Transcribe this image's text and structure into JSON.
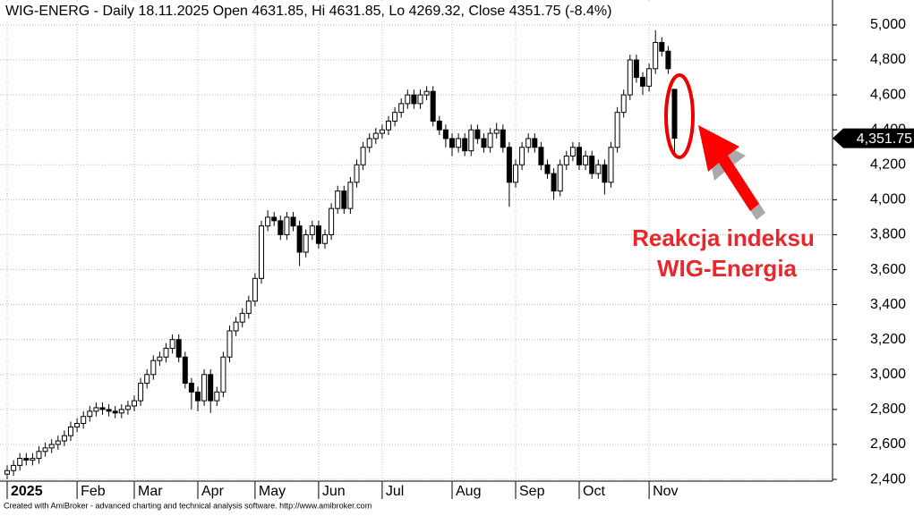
{
  "chart_data": {
    "type": "candlestick",
    "title": "WIG-ENERG - Daily 18.11.2025 Open 4631.85, Hi 4631.85, Lo 4269.32, Close 4351.75 (-8.4%)",
    "last_price_label": "4,351.75",
    "annotation": [
      "Reakcja indeksu",
      "WIG-Energia"
    ],
    "footer": "Created with AmiBroker - advanced charting and technical analysis software. http://www.amibroker.com",
    "categories": [
      "2025",
      null,
      null,
      null,
      null,
      null,
      null,
      null,
      null,
      null,
      null,
      "Feb",
      null,
      null,
      null,
      null,
      null,
      null,
      null,
      null,
      "Mar",
      null,
      null,
      null,
      null,
      null,
      null,
      null,
      null,
      null,
      "Apr",
      null,
      null,
      null,
      null,
      null,
      null,
      null,
      null,
      "May",
      null,
      null,
      null,
      null,
      null,
      null,
      null,
      null,
      null,
      "Jun",
      null,
      null,
      null,
      null,
      null,
      null,
      null,
      null,
      null,
      "Jul",
      null,
      null,
      null,
      null,
      null,
      null,
      null,
      null,
      null,
      null,
      "Aug",
      null,
      null,
      null,
      null,
      null,
      null,
      null,
      null,
      null,
      "Sep",
      null,
      null,
      null,
      null,
      null,
      null,
      null,
      null,
      null,
      "Oct",
      null,
      null,
      null,
      null,
      null,
      null,
      null,
      null,
      null,
      null,
      "Nov",
      null,
      null,
      null,
      null
    ],
    "open": [
      2430,
      2450,
      2480,
      2520,
      2510,
      2520,
      2560,
      2580,
      2600,
      2620,
      2650,
      2700,
      2720,
      2760,
      2790,
      2810,
      2800,
      2790,
      2780,
      2800,
      2820,
      2850,
      2950,
      3000,
      3080,
      3100,
      3150,
      3200,
      3100,
      2950,
      2900,
      2850,
      3000,
      2850,
      2900,
      3100,
      3250,
      3300,
      3350,
      3420,
      3550,
      3850,
      3900,
      3880,
      3800,
      3900,
      3850,
      3700,
      3800,
      3850,
      3750,
      3800,
      3950,
      4050,
      3950,
      4100,
      4200,
      4300,
      4350,
      4380,
      4400,
      4450,
      4500,
      4550,
      4600,
      4550,
      4600,
      4620,
      4450,
      4400,
      4350,
      4300,
      4350,
      4280,
      4400,
      4350,
      4300,
      4380,
      4400,
      4300,
      4100,
      4200,
      4300,
      4350,
      4300,
      4200,
      4150,
      4050,
      4200,
      4250,
      4300,
      4200,
      4250,
      4150,
      4200,
      4100,
      4300,
      4500,
      4600,
      4800,
      4700,
      4650,
      4750,
      4900,
      4850,
      4631.85
    ],
    "high": [
      2480,
      2510,
      2550,
      2550,
      2550,
      2590,
      2610,
      2630,
      2650,
      2680,
      2730,
      2750,
      2790,
      2820,
      2840,
      2840,
      2830,
      2820,
      2830,
      2850,
      2880,
      2980,
      3030,
      3110,
      3130,
      3180,
      3230,
      3230,
      3130,
      2980,
      2930,
      3030,
      3030,
      2930,
      3130,
      3280,
      3330,
      3380,
      3450,
      3580,
      3880,
      3940,
      3930,
      3910,
      3930,
      3930,
      3880,
      3830,
      3880,
      3880,
      3830,
      3980,
      4080,
      4080,
      4130,
      4230,
      4330,
      4380,
      4410,
      4430,
      4480,
      4530,
      4580,
      4630,
      4630,
      4630,
      4650,
      4650,
      4480,
      4430,
      4380,
      4380,
      4380,
      4430,
      4430,
      4380,
      4410,
      4440,
      4430,
      4330,
      4230,
      4330,
      4380,
      4380,
      4330,
      4230,
      4180,
      4230,
      4280,
      4330,
      4330,
      4280,
      4280,
      4230,
      4230,
      4330,
      4530,
      4630,
      4830,
      4830,
      4730,
      4780,
      4970,
      4930,
      4880,
      4631.85
    ],
    "low": [
      2400,
      2420,
      2450,
      2480,
      2480,
      2490,
      2530,
      2550,
      2570,
      2590,
      2620,
      2670,
      2690,
      2730,
      2760,
      2770,
      2760,
      2750,
      2750,
      2770,
      2790,
      2820,
      2920,
      2970,
      3050,
      3070,
      3120,
      3070,
      2920,
      2800,
      2790,
      2820,
      2780,
      2820,
      2870,
      3070,
      3220,
      3270,
      3320,
      3390,
      3520,
      3820,
      3850,
      3770,
      3770,
      3820,
      3620,
      3670,
      3770,
      3720,
      3720,
      3770,
      3920,
      3920,
      3920,
      4070,
      4170,
      4270,
      4320,
      4350,
      4370,
      4420,
      4470,
      4520,
      4520,
      4520,
      4570,
      4420,
      4370,
      4300,
      4250,
      4270,
      4250,
      4250,
      4320,
      4270,
      4270,
      4350,
      4270,
      3960,
      4070,
      4170,
      4270,
      4270,
      4170,
      4120,
      4000,
      4020,
      4170,
      4220,
      4170,
      4170,
      4120,
      4120,
      4030,
      4070,
      4270,
      4470,
      4570,
      4670,
      4600,
      4620,
      4720,
      4820,
      4720,
      4269.32
    ],
    "close": [
      2450,
      2480,
      2520,
      2510,
      2520,
      2560,
      2580,
      2600,
      2620,
      2650,
      2700,
      2720,
      2760,
      2790,
      2810,
      2800,
      2790,
      2780,
      2800,
      2820,
      2850,
      2950,
      3000,
      3080,
      3100,
      3150,
      3200,
      3100,
      2950,
      2900,
      2850,
      3000,
      2850,
      2900,
      3100,
      3250,
      3300,
      3350,
      3420,
      3550,
      3850,
      3900,
      3880,
      3800,
      3900,
      3850,
      3700,
      3800,
      3850,
      3750,
      3800,
      3950,
      4050,
      3950,
      4100,
      4200,
      4300,
      4350,
      4380,
      4400,
      4450,
      4500,
      4550,
      4600,
      4550,
      4600,
      4620,
      4450,
      4400,
      4350,
      4300,
      4350,
      4280,
      4400,
      4350,
      4300,
      4380,
      4400,
      4300,
      4100,
      4200,
      4300,
      4350,
      4300,
      4200,
      4150,
      4050,
      4200,
      4250,
      4300,
      4200,
      4250,
      4150,
      4200,
      4100,
      4300,
      4500,
      4600,
      4800,
      4700,
      4650,
      4750,
      4900,
      4850,
      4750,
      4351.75
    ],
    "ylim": [
      2390,
      5143
    ],
    "yticks": [
      {
        "value": 2400,
        "label": "2,400"
      },
      {
        "value": 2600,
        "label": "2,600"
      },
      {
        "value": 2800,
        "label": "2,800"
      },
      {
        "value": 3000,
        "label": "3,000"
      },
      {
        "value": 3200,
        "label": "3,200"
      },
      {
        "value": 3400,
        "label": "3,400"
      },
      {
        "value": 3600,
        "label": "3,600"
      },
      {
        "value": 3800,
        "label": "3,800"
      },
      {
        "value": 4000,
        "label": "4,000"
      },
      {
        "value": 4200,
        "label": "4,200"
      },
      {
        "value": 4400,
        "label": "4,400"
      },
      {
        "value": 4600,
        "label": "4,600"
      },
      {
        "value": 4800,
        "label": "4,800"
      },
      {
        "value": 5000,
        "label": "5,000"
      }
    ],
    "grid": true,
    "up_color": "#ffffff",
    "down_color": "#000000"
  }
}
